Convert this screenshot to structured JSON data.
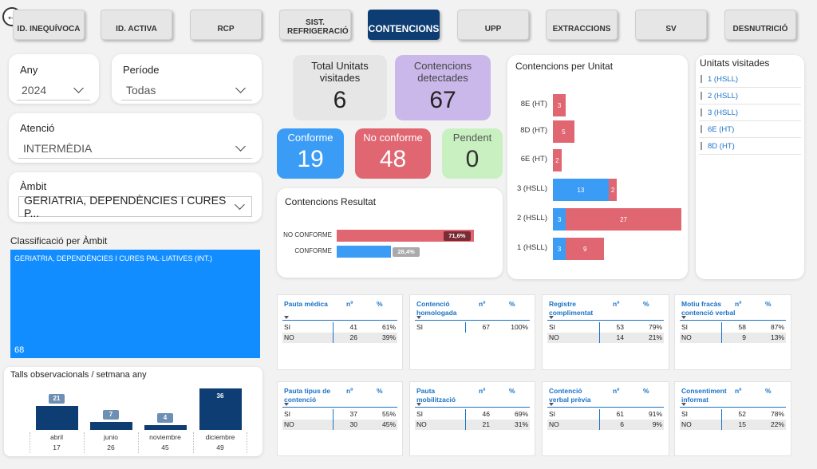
{
  "nav": {
    "tabs": [
      {
        "label": "ID. INEQUÍVOCA"
      },
      {
        "label": "ID. ACTIVA"
      },
      {
        "label": "RCP"
      },
      {
        "label": "SIST. REFRIGERACIÓ"
      },
      {
        "label": "CONTENCIONS"
      },
      {
        "label": "UPP"
      },
      {
        "label": "EXTRACCIONS"
      },
      {
        "label": "SV"
      },
      {
        "label": "DESNUTRICIÓ"
      }
    ]
  },
  "filters": {
    "any_label": "Any",
    "any_value": "2024",
    "periode_label": "Període",
    "periode_value": "Todas",
    "atencio_label": "Atenció",
    "atencio_value": "INTERMÈDIA",
    "ambit_label": "Àmbit",
    "ambit_value": "GERIATRIA, DEPENDÈNCIES I CURES P..."
  },
  "classificacio": {
    "title": "Classificació per Àmbit",
    "item_label": "GERIATRIA, DEPENDÈNCIES I CURES PAL·LIATIVES (INT.)",
    "item_value": "68"
  },
  "weekly": {
    "title": "Talls observacionals / setmana any",
    "bars": [
      {
        "month": "abril",
        "week": "17",
        "value": 21
      },
      {
        "month": "junio",
        "week": "26",
        "value": 7
      },
      {
        "month": "noviembre",
        "week": "45",
        "value": 4
      },
      {
        "month": "diciembre",
        "week": "49",
        "value": 36
      }
    ]
  },
  "kpis": {
    "total_label": "Total Unitats visitades",
    "total_value": "6",
    "detect_label": "Contencions detectades",
    "detect_value": "67",
    "conforme_label": "Conforme",
    "conforme_value": "19",
    "noconf_label": "No conforme",
    "noconf_value": "48",
    "pendent_label": "Pendent",
    "pendent_value": "0"
  },
  "resultat": {
    "title": "Contencions Resultat",
    "rows": [
      {
        "label": "NO CONFORME",
        "pct": 71.6,
        "text": "71,6%"
      },
      {
        "label": "CONFORME",
        "pct": 28.4,
        "text": "28,4%"
      }
    ]
  },
  "per_unitat": {
    "title": "Contencions per Unitat",
    "rows": [
      {
        "unit": "8E (HT)",
        "conforme": 0,
        "no_conforme": 3
      },
      {
        "unit": "8D (HT)",
        "conforme": 0,
        "no_conforme": 5
      },
      {
        "unit": "6E (HT)",
        "conforme": 0,
        "no_conforme": 2
      },
      {
        "unit": "3 (HSLL)",
        "conforme": 13,
        "no_conforme": 2
      },
      {
        "unit": "2 (HSLL)",
        "conforme": 3,
        "no_conforme": 27
      },
      {
        "unit": "1 (HSLL)",
        "conforme": 3,
        "no_conforme": 9
      }
    ]
  },
  "visitades": {
    "title": "Unitats visitades",
    "items": [
      "1 (HSLL)",
      "2 (HSLL)",
      "3 (HSLL)",
      "6E (HT)",
      "8D (HT)"
    ]
  },
  "tables": [
    {
      "title": "Pauta mèdica",
      "rows": [
        [
          "SI",
          "41",
          "61%"
        ],
        [
          "NO",
          "26",
          "39%"
        ]
      ]
    },
    {
      "title": "Contenció homologada",
      "rows": [
        [
          "SI",
          "67",
          "100%"
        ]
      ]
    },
    {
      "title": "Registre complimentat",
      "rows": [
        [
          "SI",
          "53",
          "79%"
        ],
        [
          "NO",
          "14",
          "21%"
        ]
      ]
    },
    {
      "title": "Motiu fracàs contenció verbal",
      "rows": [
        [
          "SI",
          "58",
          "87%"
        ],
        [
          "NO",
          "9",
          "13%"
        ]
      ]
    },
    {
      "title": "Pauta tipus de contenció",
      "rows": [
        [
          "SI",
          "37",
          "55%"
        ],
        [
          "NO",
          "30",
          "45%"
        ]
      ]
    },
    {
      "title": "Pauta mobilització",
      "rows": [
        [
          "SI",
          "46",
          "69%"
        ],
        [
          "NO",
          "21",
          "31%"
        ]
      ]
    },
    {
      "title": "Contenció verbal prèvia",
      "rows": [
        [
          "SI",
          "61",
          "91%"
        ],
        [
          "NO",
          "6",
          "9%"
        ]
      ]
    },
    {
      "title": "Consentiment informat",
      "rows": [
        [
          "SI",
          "52",
          "78%"
        ],
        [
          "NO",
          "15",
          "22%"
        ]
      ]
    }
  ],
  "table_headers": {
    "n": "nº",
    "pct": "%"
  },
  "colors": {
    "navy": "#0e3d73",
    "blue": "#3b9cf5",
    "red": "#e06672",
    "purple": "#cbb8ea",
    "green": "#c9f0c0",
    "grey": "#e6e6e6"
  }
}
